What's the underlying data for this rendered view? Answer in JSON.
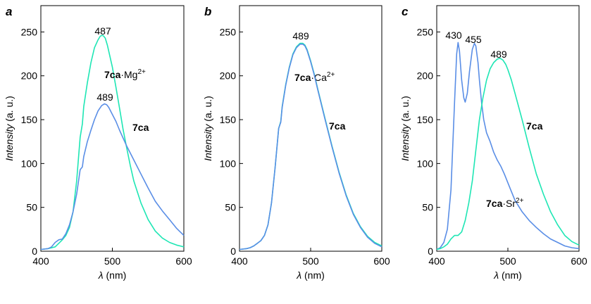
{
  "colors": {
    "complex_line": "#1ee6b4",
    "free_line": "#5a8ee6",
    "axis": "#000000"
  },
  "chart_data": [
    {
      "type": "line",
      "panel_label": "a",
      "xlabel_symbol": "λ",
      "xlabel_unit": " (nm)",
      "ylabel_italic": "Intensity",
      "ylabel_unit": " (a. u.)",
      "xlim": [
        400,
        600
      ],
      "ylim": [
        0,
        280
      ],
      "xticks": [
        400,
        500,
        600
      ],
      "yticks": [
        0,
        50,
        100,
        150,
        200,
        250
      ],
      "series": [
        {
          "name": "7ca·Mg2+",
          "label_bold": "7ca",
          "label_rest": "·Mg",
          "label_sup": "2+",
          "color_key": "complex_line",
          "x": [
            400,
            410,
            420,
            425,
            430,
            435,
            440,
            445,
            450,
            455,
            458,
            460,
            465,
            470,
            475,
            480,
            483,
            485,
            487,
            490,
            493,
            495,
            500,
            505,
            510,
            515,
            520,
            525,
            530,
            540,
            550,
            560,
            570,
            580,
            590,
            600
          ],
          "y": [
            2,
            3,
            5,
            9,
            13,
            18,
            27,
            45,
            80,
            130,
            145,
            165,
            192,
            215,
            232,
            241,
            245,
            246,
            246,
            243,
            235,
            228,
            210,
            187,
            163,
            139,
            118,
            98,
            80,
            55,
            36,
            23,
            15,
            10,
            7,
            5
          ]
        },
        {
          "name": "7ca",
          "label_bold": "7ca",
          "label_rest": "",
          "label_sup": "",
          "color_key": "free_line",
          "x": [
            400,
            410,
            415,
            420,
            425,
            430,
            435,
            440,
            445,
            450,
            455,
            458,
            460,
            465,
            470,
            475,
            480,
            485,
            489,
            492,
            495,
            500,
            505,
            510,
            520,
            530,
            540,
            550,
            560,
            570,
            580,
            590,
            600
          ],
          "y": [
            2,
            3,
            5,
            10,
            13,
            14,
            20,
            30,
            45,
            65,
            93,
            96,
            108,
            125,
            138,
            150,
            160,
            166,
            168,
            167,
            164,
            156,
            148,
            138,
            120,
            104,
            88,
            72,
            57,
            46,
            36,
            26,
            18
          ]
        }
      ],
      "annotations": [
        "487",
        "489"
      ]
    },
    {
      "type": "line",
      "panel_label": "b",
      "xlabel_symbol": "λ",
      "xlabel_unit": " (nm)",
      "ylabel_italic": "Intensity",
      "ylabel_unit": " (a. u.)",
      "xlim": [
        400,
        600
      ],
      "ylim": [
        0,
        280
      ],
      "xticks": [
        400,
        500,
        600
      ],
      "yticks": [
        0,
        50,
        100,
        150,
        200,
        250
      ],
      "series": [
        {
          "name": "7ca·Ca2+",
          "label_bold": "7ca",
          "label_rest": "·Ca",
          "label_sup": "2+",
          "color_key": "complex_line",
          "x": [
            400,
            410,
            415,
            420,
            425,
            430,
            435,
            440,
            445,
            450,
            455,
            458,
            460,
            465,
            470,
            475,
            480,
            485,
            489,
            492,
            495,
            500,
            505,
            510,
            520,
            530,
            540,
            550,
            560,
            570,
            580,
            590,
            600
          ],
          "y": [
            2,
            3,
            4,
            6,
            9,
            12,
            18,
            30,
            55,
            95,
            140,
            148,
            165,
            190,
            210,
            225,
            233,
            237,
            237,
            235,
            230,
            217,
            202,
            185,
            152,
            120,
            90,
            64,
            43,
            28,
            17,
            10,
            6
          ]
        },
        {
          "name": "7ca",
          "label_bold": "7ca",
          "label_rest": "",
          "label_sup": "",
          "color_key": "free_line",
          "x": [
            400,
            410,
            415,
            420,
            425,
            430,
            435,
            440,
            445,
            450,
            455,
            458,
            460,
            465,
            470,
            475,
            480,
            485,
            489,
            492,
            495,
            500,
            505,
            510,
            520,
            530,
            540,
            550,
            560,
            570,
            580,
            590,
            600
          ],
          "y": [
            2,
            3,
            4,
            6,
            9,
            12,
            18,
            30,
            55,
            95,
            140,
            147,
            164,
            189,
            209,
            224,
            232,
            236,
            236,
            234,
            229,
            216,
            201,
            184,
            151,
            119,
            89,
            63,
            42,
            27,
            16,
            9,
            5
          ]
        }
      ],
      "annotations": [
        "489"
      ]
    },
    {
      "type": "line",
      "panel_label": "c",
      "xlabel_symbol": "λ",
      "xlabel_unit": " (nm)",
      "ylabel_italic": "Intensity",
      "ylabel_unit": " (a. u.)",
      "xlim": [
        400,
        600
      ],
      "ylim": [
        0,
        280
      ],
      "xticks": [
        400,
        500,
        600
      ],
      "yticks": [
        0,
        50,
        100,
        150,
        200,
        250
      ],
      "series": [
        {
          "name": "7ca·Sr2+",
          "label_bold": "7ca",
          "label_rest": "·Sr",
          "label_sup": "2+",
          "color_key": "free_line",
          "x": [
            400,
            405,
            410,
            415,
            420,
            425,
            428,
            430,
            432,
            435,
            438,
            440,
            443,
            446,
            450,
            453,
            455,
            458,
            460,
            463,
            466,
            470,
            475,
            480,
            485,
            490,
            495,
            500,
            505,
            510,
            520,
            530,
            540,
            550,
            560,
            570,
            580,
            590,
            600
          ],
          "y": [
            2,
            4,
            10,
            25,
            70,
            170,
            225,
            238,
            228,
            195,
            175,
            170,
            180,
            205,
            230,
            237,
            234,
            215,
            195,
            170,
            150,
            135,
            125,
            113,
            104,
            97,
            88,
            78,
            68,
            58,
            45,
            35,
            27,
            20,
            14,
            10,
            6,
            4,
            3
          ]
        },
        {
          "name": "7ca",
          "label_bold": "7ca",
          "label_rest": "",
          "label_sup": "",
          "color_key": "complex_line",
          "x": [
            400,
            405,
            410,
            415,
            420,
            425,
            430,
            435,
            440,
            445,
            450,
            455,
            460,
            465,
            470,
            475,
            480,
            485,
            489,
            493,
            497,
            500,
            505,
            510,
            520,
            530,
            540,
            550,
            560,
            570,
            580,
            590,
            600
          ],
          "y": [
            2,
            3,
            5,
            8,
            14,
            18,
            18,
            22,
            35,
            55,
            80,
            115,
            150,
            175,
            195,
            208,
            215,
            219,
            220,
            218,
            213,
            207,
            195,
            180,
            150,
            118,
            88,
            65,
            45,
            30,
            18,
            11,
            7
          ]
        }
      ],
      "annotations": [
        "430",
        "455",
        "489"
      ]
    }
  ]
}
